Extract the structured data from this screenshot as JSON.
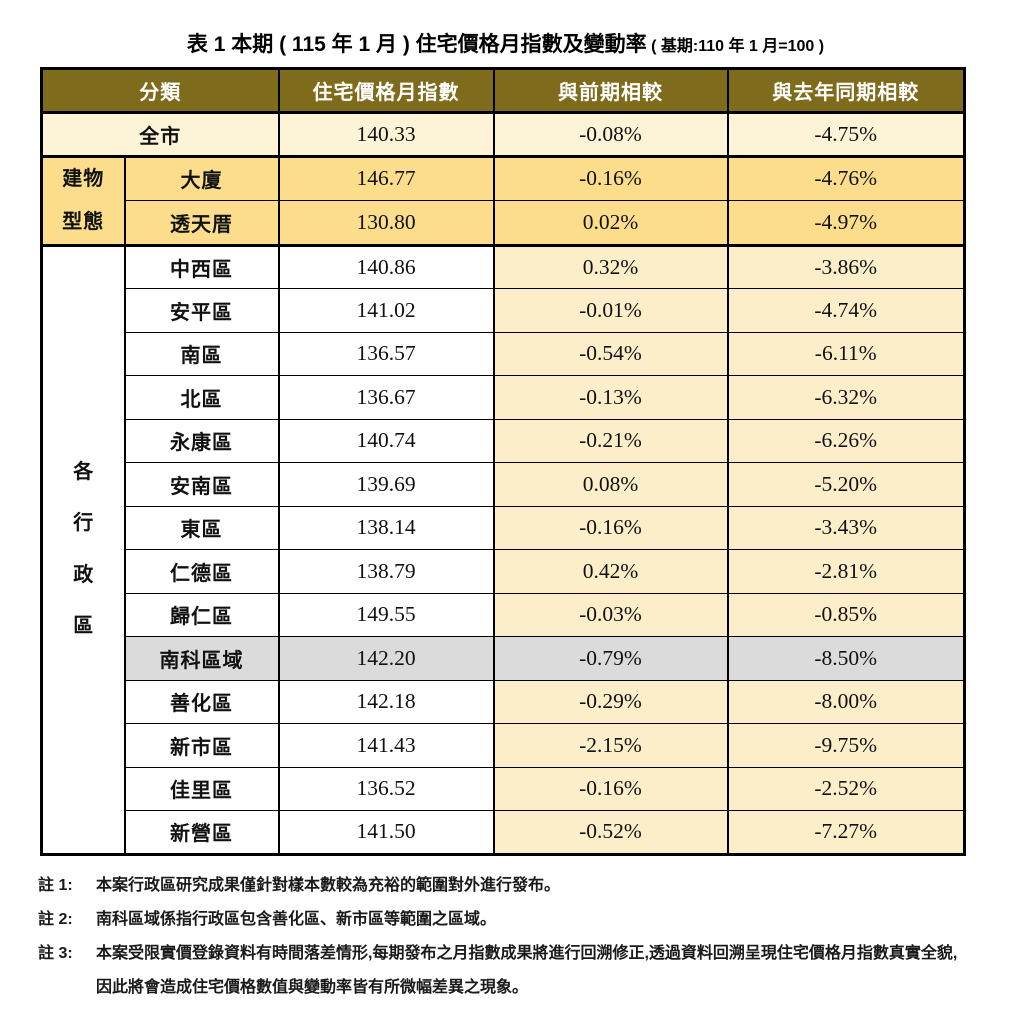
{
  "title": {
    "main": "表 1 本期 ( 115 年 1 月 ) 住宅價格月指數及變動率",
    "base": " ( 基期:110 年 1 月=100 )"
  },
  "colors": {
    "header_bg": "#7F6B1C",
    "header_text": "#FFFFFF",
    "row_city_cream": "#FDF3D6",
    "row_gold": "#FBDD8B",
    "district_percent_cream": "#FBEEC9",
    "row_gray": "#DBDBDB",
    "border": "#000000"
  },
  "table": {
    "headers": {
      "category": "分類",
      "index": "住宅價格月指數",
      "mom": "與前期相較",
      "yoy": "與去年同期相較"
    },
    "groups": {
      "building": {
        "label": "建物型態",
        "lines": [
          "建物",
          "型態"
        ]
      },
      "admin": {
        "label": "各行政區",
        "chars": [
          "各",
          "行",
          "政",
          "區"
        ]
      }
    },
    "rows": [
      {
        "name": "全市",
        "index": "140.33",
        "mom": "-0.08%",
        "yoy": "-4.75%"
      },
      {
        "name": "大廈",
        "index": "146.77",
        "mom": "-0.16%",
        "yoy": "-4.76%"
      },
      {
        "name": "透天厝",
        "index": "130.80",
        "mom": "0.02%",
        "yoy": "-4.97%"
      },
      {
        "name": "中西區",
        "index": "140.86",
        "mom": "0.32%",
        "yoy": "-3.86%"
      },
      {
        "name": "安平區",
        "index": "141.02",
        "mom": "-0.01%",
        "yoy": "-4.74%"
      },
      {
        "name": "南區",
        "index": "136.57",
        "mom": "-0.54%",
        "yoy": "-6.11%"
      },
      {
        "name": "北區",
        "index": "136.67",
        "mom": "-0.13%",
        "yoy": "-6.32%"
      },
      {
        "name": "永康區",
        "index": "140.74",
        "mom": "-0.21%",
        "yoy": "-6.26%"
      },
      {
        "name": "安南區",
        "index": "139.69",
        "mom": "0.08%",
        "yoy": "-5.20%"
      },
      {
        "name": "東區",
        "index": "138.14",
        "mom": "-0.16%",
        "yoy": "-3.43%"
      },
      {
        "name": "仁德區",
        "index": "138.79",
        "mom": "0.42%",
        "yoy": "-2.81%"
      },
      {
        "name": "歸仁區",
        "index": "149.55",
        "mom": "-0.03%",
        "yoy": "-0.85%"
      },
      {
        "name": "南科區域",
        "index": "142.20",
        "mom": "-0.79%",
        "yoy": "-8.50%"
      },
      {
        "name": "善化區",
        "index": "142.18",
        "mom": "-0.29%",
        "yoy": "-8.00%"
      },
      {
        "name": "新市區",
        "index": "141.43",
        "mom": "-2.15%",
        "yoy": "-9.75%"
      },
      {
        "name": "佳里區",
        "index": "136.52",
        "mom": "-0.16%",
        "yoy": "-2.52%"
      },
      {
        "name": "新營區",
        "index": "141.50",
        "mom": "-0.52%",
        "yoy": "-7.27%"
      }
    ]
  },
  "notes": [
    {
      "label": "註 1:",
      "text": "本案行政區研究成果僅針對樣本數較為充裕的範圍對外進行發布。"
    },
    {
      "label": "註 2:",
      "text": "南科區域係指行政區包含善化區、新市區等範圍之區域。"
    },
    {
      "label": "註 3:",
      "text": "本案受限實價登錄資料有時間落差情形,每期發布之月指數成果將進行回溯修正,透過資料回溯呈現住宅價格月指數真實全貌,因此將會造成住宅價格數值與變動率皆有所微幅差異之現象。"
    }
  ]
}
